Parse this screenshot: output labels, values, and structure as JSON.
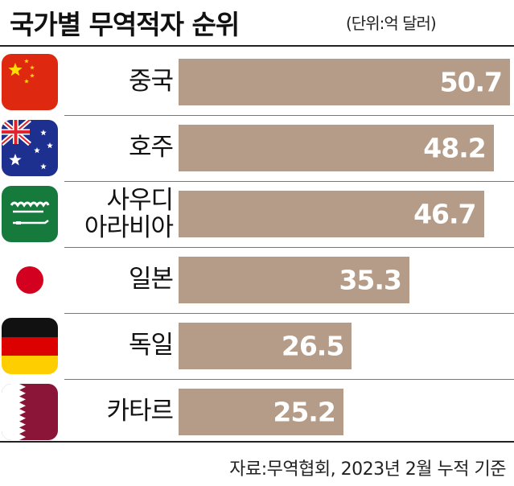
{
  "chart_data": {
    "type": "bar",
    "orientation": "horizontal",
    "title": "국가별 무역적자 순위",
    "unit": "(단위:억 달러)",
    "categories": [
      "중국",
      "호주",
      "사우디\n아라비아",
      "일본",
      "독일",
      "카타르"
    ],
    "values": [
      50.7,
      48.2,
      46.7,
      35.3,
      26.5,
      25.2
    ],
    "value_labels": [
      "50.7",
      "48.2",
      "46.7",
      "35.3",
      "26.5",
      "25.2"
    ],
    "flags": [
      "china-flag-icon",
      "australia-flag-icon",
      "saudi-arabia-flag-icon",
      "japan-flag-icon",
      "germany-flag-icon",
      "qatar-flag-icon"
    ],
    "bar_color": "#b49c88",
    "value_color": "#ffffff",
    "source": "자료:무역협회, 2023년 2월 누적 기준",
    "xlim": [
      0,
      50.7
    ]
  }
}
